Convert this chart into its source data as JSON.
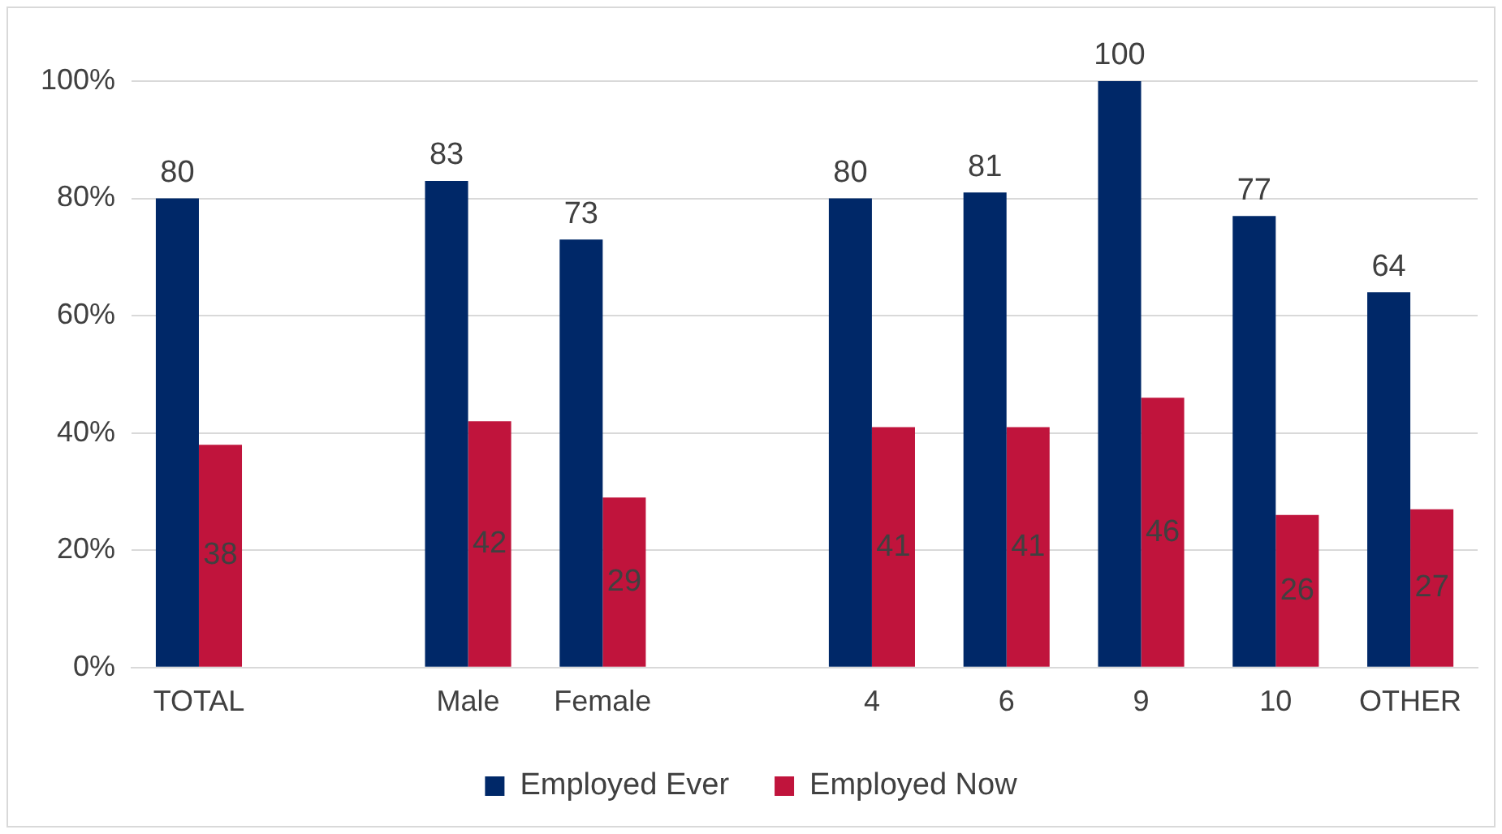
{
  "chart_data": {
    "type": "bar",
    "categories": [
      "TOTAL",
      null,
      "Male",
      "Female",
      null,
      "4",
      "6",
      "9",
      "10",
      "OTHER"
    ],
    "series": [
      {
        "name": "Employed Ever",
        "color": "#002868",
        "values": [
          80,
          null,
          83,
          73,
          null,
          80,
          81,
          100,
          77,
          64
        ]
      },
      {
        "name": "Employed Now",
        "color": "#c0143c",
        "values": [
          38,
          null,
          42,
          29,
          null,
          41,
          41,
          46,
          26,
          27
        ]
      }
    ],
    "ylim": [
      0,
      100
    ],
    "yticks": [
      {
        "value": 0,
        "label": "0%"
      },
      {
        "value": 20,
        "label": "20%"
      },
      {
        "value": 40,
        "label": "40%"
      },
      {
        "value": 60,
        "label": "60%"
      },
      {
        "value": 80,
        "label": "80%"
      },
      {
        "value": 100,
        "label": "100%"
      }
    ],
    "grid": "y",
    "legend": "bottom",
    "data_labels": true
  }
}
